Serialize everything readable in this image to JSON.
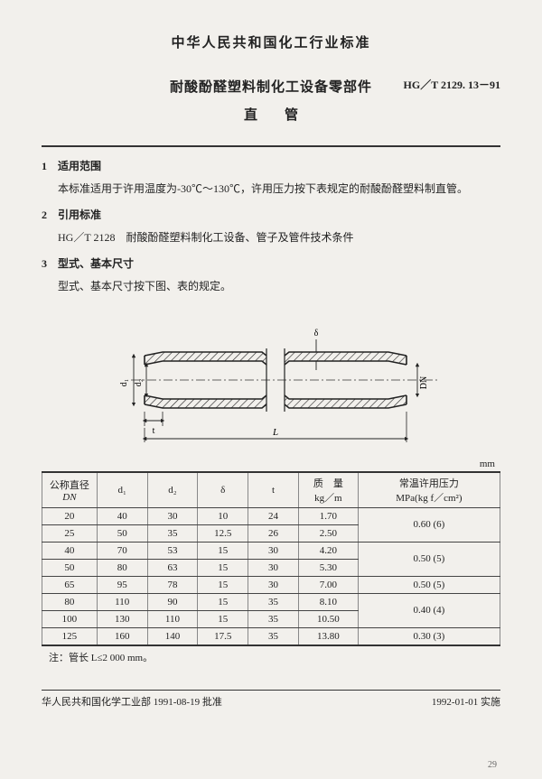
{
  "header": {
    "standard_line": "中华人民共和国化工行业标准",
    "title_main": "耐酸酚醛塑料制化工设备零部件",
    "title_code": "HG／T 2129. 13－91",
    "title_sub": "直管"
  },
  "sections": {
    "s1_head": "1　适用范围",
    "s1_body": "本标准适用于许用温度为-30℃～130℃，许用压力按下表规定的耐酸酚醛塑料制直管。",
    "s2_head": "2　引用标准",
    "s2_body": "HG／T 2128　耐酸酚醛塑料制化工设备、管子及管件技术条件",
    "s3_head": "3　型式、基本尺寸",
    "s3_body": "型式、基本尺寸按下图、表的规定。"
  },
  "diagram": {
    "label_d1": "d₁",
    "label_d2": "d₂",
    "label_delta": "δ",
    "label_t": "t",
    "label_L": "L",
    "label_DN": "DN",
    "stroke": "#222",
    "hatch": "#222",
    "thin": "#333"
  },
  "table": {
    "unit": "mm",
    "head": {
      "c0a": "公称直径",
      "c0b": "DN",
      "c1": "d₁",
      "c2": "d₂",
      "c3": "δ",
      "c4": "t",
      "c5a": "质　量",
      "c5b": "kg／m",
      "c6a": "常温许用压力",
      "c6b": "MPa(kg f／cm²)"
    },
    "rows": [
      {
        "dn": "20",
        "d1": "40",
        "d2": "30",
        "del": "10",
        "t": "24",
        "m": "1.70",
        "p": ""
      },
      {
        "dn": "25",
        "d1": "50",
        "d2": "35",
        "del": "12.5",
        "t": "26",
        "m": "2.50",
        "p": "0.60 (6)"
      },
      {
        "dn": "40",
        "d1": "70",
        "d2": "53",
        "del": "15",
        "t": "30",
        "m": "4.20",
        "p": ""
      },
      {
        "dn": "50",
        "d1": "80",
        "d2": "63",
        "del": "15",
        "t": "30",
        "m": "5.30",
        "p": "0.50 (5)"
      },
      {
        "dn": "65",
        "d1": "95",
        "d2": "78",
        "del": "15",
        "t": "30",
        "m": "7.00",
        "p": "0.50 (5)"
      },
      {
        "dn": "80",
        "d1": "110",
        "d2": "90",
        "del": "15",
        "t": "35",
        "m": "8.10",
        "p": ""
      },
      {
        "dn": "100",
        "d1": "130",
        "d2": "110",
        "del": "15",
        "t": "35",
        "m": "10.50",
        "p": "0.40 (4)"
      },
      {
        "dn": "125",
        "d1": "160",
        "d2": "140",
        "del": "17.5",
        "t": "35",
        "m": "13.80",
        "p": "0.30 (3)"
      }
    ],
    "footnote": "注：管长 L≤2 000 mm。"
  },
  "footer": {
    "left": "华人民共和国化学工业部 1991-08-19 批准",
    "right": "1992-01-01 实施",
    "pagenum": "29"
  }
}
